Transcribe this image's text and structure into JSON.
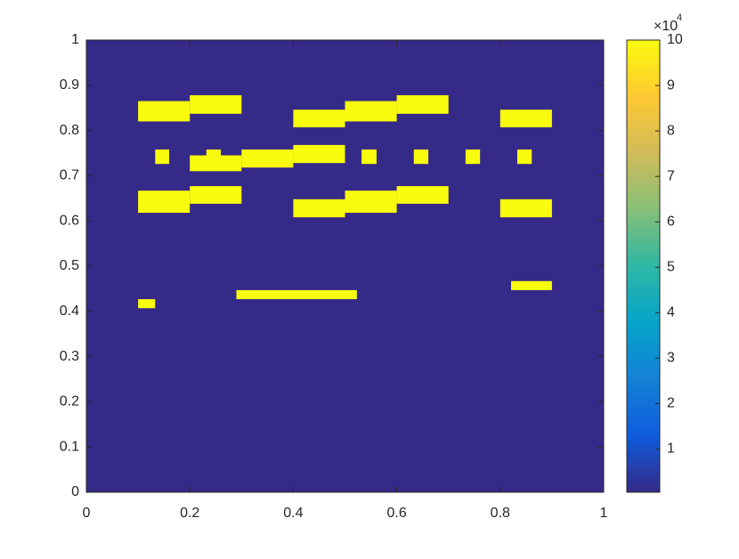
{
  "chart_data": {
    "type": "image",
    "xlim": [
      0,
      1
    ],
    "ylim": [
      0,
      1
    ],
    "xticks": [
      0,
      0.2,
      0.4,
      0.6,
      0.8,
      1
    ],
    "yticks": [
      0,
      0.1,
      0.2,
      0.3,
      0.4,
      0.5,
      0.6,
      0.7,
      0.8,
      0.9,
      1
    ],
    "background_value": 500,
    "rects": [
      {
        "x": [
          0.1,
          0.2
        ],
        "y": [
          0.82,
          0.865
        ],
        "value": 100000
      },
      {
        "x": [
          0.2,
          0.3
        ],
        "y": [
          0.837,
          0.878
        ],
        "value": 100000
      },
      {
        "x": [
          0.133,
          0.16
        ],
        "y": [
          0.726,
          0.758
        ],
        "value": 100000
      },
      {
        "x": [
          0.2,
          0.3
        ],
        "y": [
          0.71,
          0.745
        ],
        "value": 100000
      },
      {
        "x": [
          0.232,
          0.26
        ],
        "y": [
          0.745,
          0.758
        ],
        "value": 100000
      },
      {
        "x": [
          0.3,
          0.4
        ],
        "y": [
          0.718,
          0.758
        ],
        "value": 100000
      },
      {
        "x": [
          0.4,
          0.5
        ],
        "y": [
          0.728,
          0.768
        ],
        "value": 100000
      },
      {
        "x": [
          0.4,
          0.5
        ],
        "y": [
          0.807,
          0.846
        ],
        "value": 100000
      },
      {
        "x": [
          0.5,
          0.6
        ],
        "y": [
          0.82,
          0.865
        ],
        "value": 100000
      },
      {
        "x": [
          0.6,
          0.7
        ],
        "y": [
          0.837,
          0.878
        ],
        "value": 100000
      },
      {
        "x": [
          0.532,
          0.561
        ],
        "y": [
          0.726,
          0.758
        ],
        "value": 100000
      },
      {
        "x": [
          0.633,
          0.661
        ],
        "y": [
          0.726,
          0.758
        ],
        "value": 100000
      },
      {
        "x": [
          0.733,
          0.761
        ],
        "y": [
          0.726,
          0.758
        ],
        "value": 100000
      },
      {
        "x": [
          0.833,
          0.861
        ],
        "y": [
          0.726,
          0.758
        ],
        "value": 100000
      },
      {
        "x": [
          0.8,
          0.9
        ],
        "y": [
          0.807,
          0.846
        ],
        "value": 100000
      },
      {
        "x": [
          0.1,
          0.2
        ],
        "y": [
          0.618,
          0.667
        ],
        "value": 100000
      },
      {
        "x": [
          0.2,
          0.3
        ],
        "y": [
          0.638,
          0.677
        ],
        "value": 100000
      },
      {
        "x": [
          0.4,
          0.5
        ],
        "y": [
          0.608,
          0.648
        ],
        "value": 100000
      },
      {
        "x": [
          0.5,
          0.6
        ],
        "y": [
          0.618,
          0.667
        ],
        "value": 100000
      },
      {
        "x": [
          0.6,
          0.7
        ],
        "y": [
          0.638,
          0.677
        ],
        "value": 100000
      },
      {
        "x": [
          0.8,
          0.9
        ],
        "y": [
          0.608,
          0.648
        ],
        "value": 100000
      },
      {
        "x": [
          0.1,
          0.133
        ],
        "y": [
          0.407,
          0.427
        ],
        "value": 100000
      },
      {
        "x": [
          0.29,
          0.523
        ],
        "y": [
          0.427,
          0.447
        ],
        "value": 100000
      },
      {
        "x": [
          0.821,
          0.9
        ],
        "y": [
          0.447,
          0.467
        ],
        "value": 100000
      }
    ],
    "clim": [
      500,
      100000
    ],
    "colormap": [
      "#352a87",
      "#0f5cdd",
      "#1481d6",
      "#06a4ca",
      "#2eb7a4",
      "#87bf77",
      "#d1bb59",
      "#fec832",
      "#f9fb0e"
    ],
    "cticks": [
      {
        "value": 10000,
        "label": "1"
      },
      {
        "value": 20000,
        "label": "2"
      },
      {
        "value": 30000,
        "label": "3"
      },
      {
        "value": 40000,
        "label": "4"
      },
      {
        "value": 50000,
        "label": "5"
      },
      {
        "value": 60000,
        "label": "6"
      },
      {
        "value": 70000,
        "label": "7"
      },
      {
        "value": 80000,
        "label": "8"
      },
      {
        "value": 90000,
        "label": "9"
      },
      {
        "value": 100000,
        "label": "10"
      }
    ],
    "colorbar_multiplier": "×10",
    "colorbar_exponent": "4"
  }
}
